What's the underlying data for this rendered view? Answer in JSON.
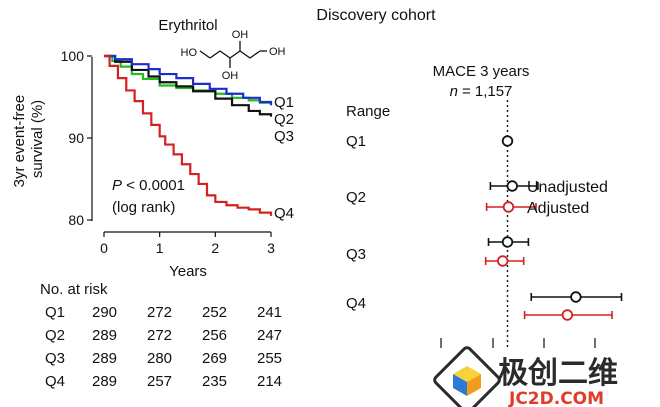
{
  "figure": {
    "title": "Discovery cohort",
    "compound_label": "Erythritol",
    "oh_labels": [
      "HO",
      "OH",
      "OH",
      "OH"
    ]
  },
  "chart_data": [
    {
      "type": "line",
      "ylabel": "3yr event-free survival (%)",
      "xlabel": "Years",
      "xlim": [
        0,
        3
      ],
      "ylim": [
        80,
        100
      ],
      "xticks": [
        "0",
        "1",
        "2",
        "3"
      ],
      "yticks": [
        "80",
        "90",
        "100"
      ],
      "annotation_line1": "P < 0.0001",
      "annotation_line2": "(log rank)",
      "series": [
        {
          "name": "Q1",
          "color": "#22bb22",
          "x": [
            0,
            0.15,
            0.3,
            0.5,
            0.7,
            1.0,
            1.3,
            1.6,
            2.0,
            2.3,
            2.6,
            2.8,
            3.0
          ],
          "y": [
            100,
            99.4,
            98.7,
            97.8,
            97.2,
            96.4,
            96.1,
            95.8,
            95.4,
            94.9,
            94.6,
            94.3,
            94.1
          ]
        },
        {
          "name": "Q2",
          "color": "#111111",
          "x": [
            0,
            0.2,
            0.5,
            0.8,
            1.0,
            1.3,
            1.6,
            2.0,
            2.3,
            2.6,
            2.8,
            3.0
          ],
          "y": [
            100,
            99.3,
            98.3,
            97.5,
            96.8,
            96.3,
            95.7,
            94.8,
            94.0,
            93.3,
            92.9,
            92.6
          ]
        },
        {
          "name": "Q3",
          "color": "#1c2bd4",
          "x": [
            0,
            0.2,
            0.5,
            0.8,
            1.0,
            1.3,
            1.6,
            1.9,
            2.2,
            2.5,
            2.8,
            3.0
          ],
          "y": [
            100,
            99.6,
            99.0,
            98.4,
            97.8,
            97.3,
            96.6,
            96.0,
            95.4,
            94.9,
            94.4,
            94.0
          ]
        },
        {
          "name": "Q4",
          "color": "#d42020",
          "x": [
            0,
            0.1,
            0.25,
            0.4,
            0.55,
            0.7,
            0.85,
            1.0,
            1.1,
            1.25,
            1.4,
            1.55,
            1.7,
            1.85,
            2.0,
            2.2,
            2.4,
            2.6,
            2.8,
            3.0
          ],
          "y": [
            100,
            98.8,
            97.3,
            95.8,
            94.5,
            93.0,
            91.6,
            90.2,
            89.2,
            88.0,
            86.8,
            85.6,
            84.4,
            83.0,
            82.2,
            81.8,
            81.5,
            81.3,
            80.9,
            80.5
          ]
        }
      ]
    },
    {
      "type": "scatter",
      "title": "MACE 3 years",
      "subtitle_prefix": "n",
      "subtitle_value": "= 1,157",
      "range_label": "Range",
      "reference_value": 1,
      "xlim": [
        0.3,
        2.3
      ],
      "rows": [
        "Q1",
        "Q2",
        "Q3",
        "Q4"
      ],
      "series": [
        {
          "name": "Unadjusted",
          "color": "#111111",
          "points": [
            {
              "row": "Q1",
              "estimate": 1.0,
              "lower": 1.0,
              "upper": 1.0
            },
            {
              "row": "Q2",
              "estimate": 1.05,
              "lower": 0.82,
              "upper": 1.32
            },
            {
              "row": "Q3",
              "estimate": 1.0,
              "lower": 0.8,
              "upper": 1.22
            },
            {
              "row": "Q4",
              "estimate": 1.72,
              "lower": 1.25,
              "upper": 2.2
            }
          ]
        },
        {
          "name": "Adjusted",
          "color": "#d42020",
          "points": [
            {
              "row": "Q2",
              "estimate": 1.01,
              "lower": 0.78,
              "upper": 1.3
            },
            {
              "row": "Q3",
              "estimate": 0.95,
              "lower": 0.77,
              "upper": 1.17
            },
            {
              "row": "Q4",
              "estimate": 1.63,
              "lower": 1.18,
              "upper": 2.1
            }
          ]
        }
      ]
    }
  ],
  "risk_table": {
    "title": "No. at risk",
    "rows": [
      {
        "label": "Q1",
        "values": [
          "290",
          "272",
          "252",
          "241"
        ]
      },
      {
        "label": "Q2",
        "values": [
          "289",
          "272",
          "256",
          "247"
        ]
      },
      {
        "label": "Q3",
        "values": [
          "289",
          "280",
          "269",
          "255"
        ]
      },
      {
        "label": "Q4",
        "values": [
          "289",
          "257",
          "235",
          "214"
        ]
      }
    ]
  },
  "watermark": {
    "text": "极创二维",
    "domain": "JC2D.COM",
    "colors": {
      "orange": "#f29b1d",
      "yellow": "#f7d23a",
      "blue": "#2b7bd6",
      "purple": "#7a4fb5",
      "dark": "#2b2b2b",
      "red": "#e23b2a"
    }
  }
}
